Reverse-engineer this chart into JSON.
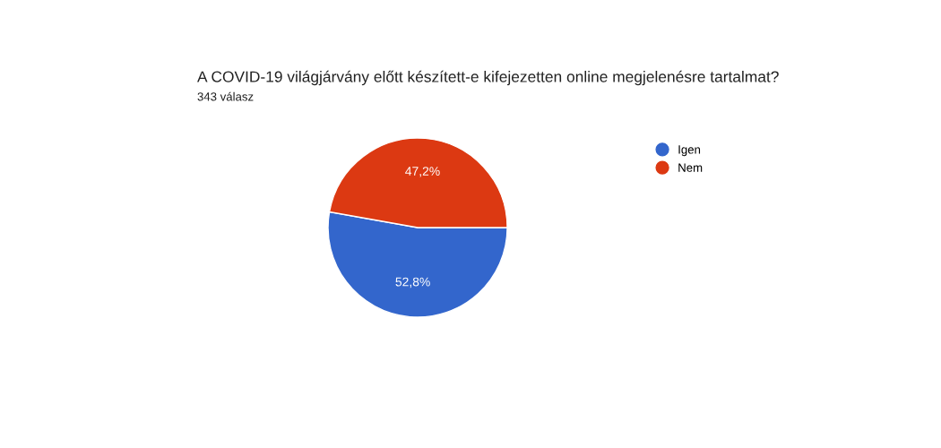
{
  "chart_data": {
    "type": "pie",
    "title": "A COVID-19 világjárvány előtt készített-e kifejezetten online megjelenésre tartalmat?",
    "subtitle": "343 válasz",
    "categories": [
      "Igen",
      "Nem"
    ],
    "values": [
      52.8,
      47.2
    ],
    "colors": [
      "#3366cc",
      "#dc3912"
    ],
    "value_labels": [
      "52,8%",
      "47,2%"
    ],
    "legend": "right"
  }
}
